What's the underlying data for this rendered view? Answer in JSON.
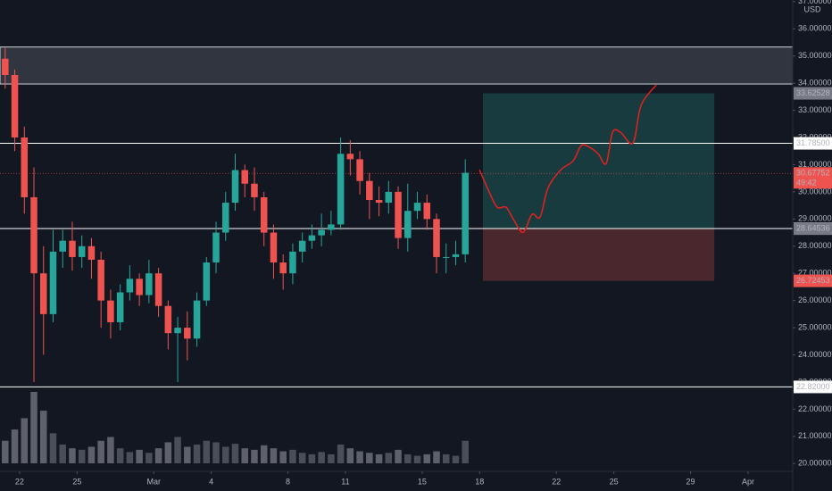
{
  "chart_data": {
    "type": "candlestick",
    "currency": "USD",
    "xlim": [
      -1.02,
      40.33
    ],
    "ylim": [
      18.99,
      37.06
    ],
    "grid": false,
    "up_color": "#26a69a",
    "down_color": "#ef5350",
    "xticks": [
      {
        "value": 0,
        "label": "22"
      },
      {
        "value": 3,
        "label": "25"
      },
      {
        "value": 7,
        "label": "Mar"
      },
      {
        "value": 10,
        "label": "4"
      },
      {
        "value": 14,
        "label": "8"
      },
      {
        "value": 17,
        "label": "11"
      },
      {
        "value": 21,
        "label": "15"
      },
      {
        "value": 24,
        "label": "18"
      },
      {
        "value": 28,
        "label": "22"
      },
      {
        "value": 31,
        "label": "25"
      },
      {
        "value": 35,
        "label": "29"
      },
      {
        "value": 38,
        "label": "Apr"
      }
    ],
    "yticks": [
      {
        "value": 20,
        "label": "20.00000"
      },
      {
        "value": 21,
        "label": "21.00000"
      },
      {
        "value": 22,
        "label": "22.00000"
      },
      {
        "value": 23,
        "label": "23.00000"
      },
      {
        "value": 24,
        "label": "24.00000"
      },
      {
        "value": 25,
        "label": "25.00000"
      },
      {
        "value": 26,
        "label": "26.00000"
      },
      {
        "value": 27,
        "label": "27.00000"
      },
      {
        "value": 28,
        "label": "28.00000"
      },
      {
        "value": 29,
        "label": "29.00000"
      },
      {
        "value": 30,
        "label": "30.00000"
      },
      {
        "value": 31,
        "label": "31.00000"
      },
      {
        "value": 32,
        "label": "32.00000"
      },
      {
        "value": 33,
        "label": "33.00000"
      },
      {
        "value": 34,
        "label": "34.00000"
      },
      {
        "value": 35,
        "label": "35.00000"
      },
      {
        "value": 36,
        "label": "36.00000"
      },
      {
        "value": 37,
        "label": "37.00000"
      }
    ],
    "x": [
      -0.75,
      -0.25,
      0.25,
      0.75,
      1.25,
      1.75,
      2.25,
      2.75,
      3.25,
      3.75,
      4.25,
      4.75,
      5.25,
      5.75,
      6.25,
      6.75,
      7.25,
      7.75,
      8.25,
      8.75,
      9.25,
      9.75,
      10.25,
      10.75,
      11.25,
      11.75,
      12.25,
      12.75,
      13.25,
      13.75,
      14.25,
      14.75,
      15.25,
      15.75,
      16.25,
      16.75,
      17.25,
      17.75,
      18.25,
      18.75,
      19.25,
      19.75,
      20.25,
      20.75,
      21.25,
      21.75,
      22.25,
      22.75,
      23.25
    ],
    "open": [
      34.9,
      34.3,
      32.0,
      29.8,
      27.0,
      25.5,
      27.8,
      28.2,
      27.6,
      28.0,
      27.5,
      26.0,
      25.2,
      26.3,
      26.8,
      26.2,
      27.0,
      25.8,
      24.8,
      25.0,
      24.6,
      26.0,
      27.4,
      28.5,
      29.6,
      30.8,
      30.3,
      29.8,
      28.5,
      27.4,
      27.0,
      27.8,
      28.2,
      28.4,
      28.6,
      28.8,
      31.4,
      31.2,
      30.4,
      29.7,
      29.6,
      30.0,
      28.3,
      29.3,
      29.6,
      29.0,
      27.6,
      27.6,
      27.7
    ],
    "high": [
      35.3,
      34.5,
      32.4,
      30.9,
      28.0,
      28.6,
      28.6,
      28.9,
      28.4,
      28.3,
      27.8,
      26.4,
      26.6,
      27.3,
      27.0,
      27.5,
      27.2,
      26.0,
      25.4,
      25.6,
      26.3,
      27.6,
      28.9,
      30.0,
      31.4,
      31.0,
      30.9,
      30.0,
      28.8,
      27.7,
      28.1,
      28.5,
      28.8,
      29.2,
      29.3,
      32.0,
      31.9,
      31.5,
      30.7,
      30.2,
      30.4,
      30.2,
      30.3,
      30.0,
      29.9,
      29.2,
      28.1,
      28.2,
      31.2
    ],
    "low": [
      33.8,
      31.5,
      29.2,
      23.0,
      24.0,
      25.2,
      27.2,
      27.1,
      27.2,
      26.8,
      25.0,
      24.6,
      24.9,
      26.0,
      25.8,
      25.9,
      25.4,
      24.2,
      23.0,
      23.8,
      24.3,
      25.8,
      27.0,
      28.2,
      29.3,
      29.8,
      29.3,
      28.0,
      26.8,
      26.4,
      26.6,
      27.4,
      27.9,
      28.0,
      28.4,
      28.6,
      30.6,
      29.9,
      29.0,
      29.1,
      29.2,
      27.9,
      27.8,
      29.0,
      28.6,
      27.0,
      27.0,
      27.3,
      27.4
    ],
    "close": [
      34.3,
      32.0,
      29.8,
      27.0,
      25.5,
      27.8,
      28.2,
      27.6,
      28.0,
      27.5,
      26.0,
      25.2,
      26.3,
      26.8,
      26.2,
      27.0,
      25.8,
      24.8,
      25.0,
      24.6,
      26.0,
      27.4,
      28.5,
      29.6,
      30.8,
      30.3,
      29.8,
      28.5,
      27.4,
      27.0,
      27.8,
      28.2,
      28.4,
      28.6,
      28.8,
      31.4,
      31.2,
      30.4,
      29.7,
      29.6,
      30.0,
      28.3,
      29.3,
      29.6,
      29.0,
      27.6,
      27.6,
      27.7,
      30.7
    ],
    "volume": [
      30,
      45,
      60,
      95,
      70,
      40,
      25,
      20,
      18,
      22,
      30,
      35,
      20,
      15,
      18,
      14,
      20,
      28,
      35,
      22,
      25,
      30,
      28,
      22,
      26,
      20,
      18,
      24,
      20,
      16,
      18,
      14,
      12,
      15,
      12,
      25,
      20,
      16,
      14,
      12,
      14,
      18,
      12,
      10,
      12,
      16,
      12,
      10,
      30
    ],
    "zone": {
      "top": 35.33,
      "bottom": 33.97
    },
    "levels": [
      31.785,
      28.64831,
      22.82
    ],
    "last_price": 30.67752,
    "position": {
      "x0": 24.17,
      "x1": 36.24,
      "entry": 28.64536,
      "target": 33.62528,
      "stop": 26.72453
    },
    "projection": {
      "color": "#e5211d",
      "x": [
        23.99,
        24.5,
        24.92,
        25.38,
        25.8,
        26.27,
        26.73,
        27.15,
        27.57,
        28.23,
        28.88,
        29.3,
        29.76,
        30.18,
        30.6,
        30.93,
        31.35,
        32.0,
        32.42,
        33.21
      ],
      "y": [
        30.81,
        29.99,
        29.43,
        29.43,
        28.94,
        28.51,
        29.17,
        29.07,
        30.15,
        30.81,
        31.14,
        31.7,
        31.63,
        31.4,
        31.04,
        32.19,
        32.19,
        31.8,
        33.18,
        33.93
      ]
    },
    "price_labels": [
      {
        "value": 33.62528,
        "label": "33.62528",
        "bg": "#787b86",
        "fg": "#ffffff"
      },
      {
        "value": 31.785,
        "label": "31.78500",
        "bg": "#ffffff",
        "fg": "#131722"
      },
      {
        "value": 30.67752,
        "label": "30.67752",
        "countdown": "49:42",
        "bg": "#ef5350",
        "fg": "#ffffff"
      },
      {
        "value": 28.64831,
        "label": "28.64831",
        "bg": "#ffffff",
        "fg": "#131722"
      },
      {
        "value": 28.64536,
        "label": "28.64536",
        "bg": "#787b86",
        "fg": "#ffffff"
      },
      {
        "value": 26.72453,
        "label": "26.72453",
        "bg": "#ef5350",
        "fg": "#ffffff"
      },
      {
        "value": 22.82,
        "label": "22.82000",
        "bg": "#ffffff",
        "fg": "#131722"
      }
    ]
  }
}
